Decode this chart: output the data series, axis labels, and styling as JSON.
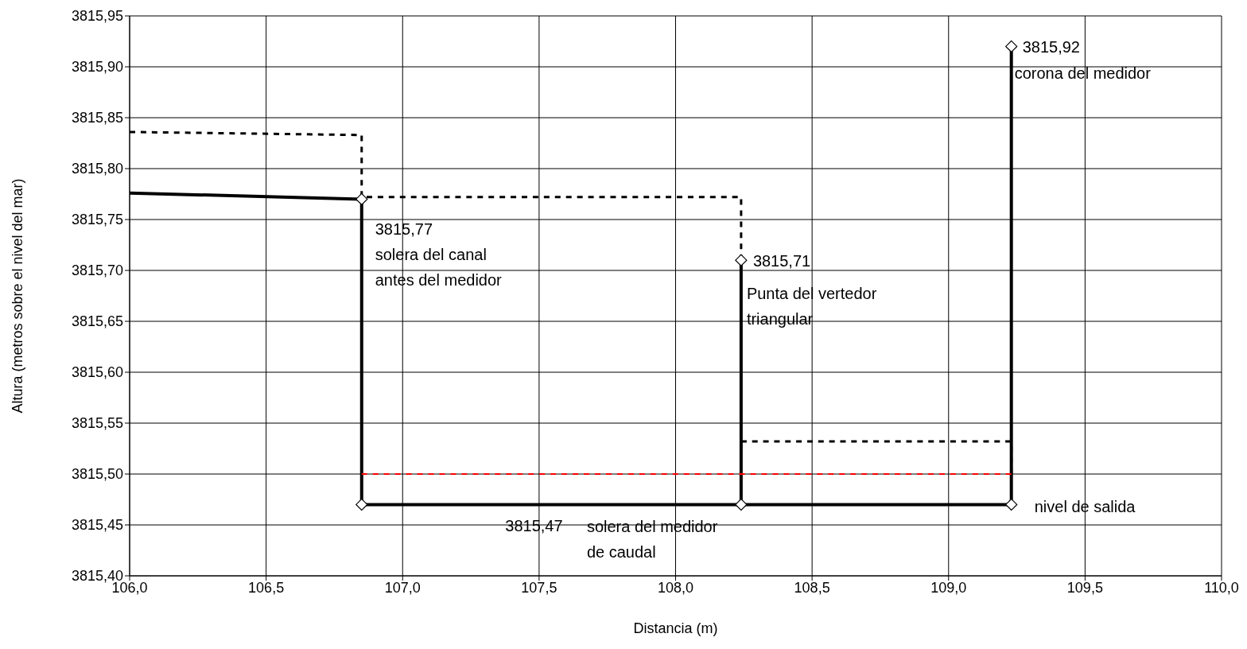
{
  "chart_data": {
    "type": "line",
    "xlabel": "Distancia (m)",
    "ylabel": "Altura (metros sobre el nivel del mar)",
    "xlim": [
      106,
      110
    ],
    "xticks": [
      {
        "value": 106,
        "label": "106,0"
      },
      {
        "value": 106.5,
        "label": "106,5"
      },
      {
        "value": 107,
        "label": "107,0"
      },
      {
        "value": 107.5,
        "label": "107,5"
      },
      {
        "value": 108,
        "label": "108,0"
      },
      {
        "value": 108.5,
        "label": "108,5"
      },
      {
        "value": 109,
        "label": "109,0"
      },
      {
        "value": 109.5,
        "label": "109,5"
      },
      {
        "value": 110,
        "label": "110,0"
      }
    ],
    "ylim": [
      3815.4,
      3815.95
    ],
    "yticks": [
      {
        "value": 3815.4,
        "label": "3815,40"
      },
      {
        "value": 3815.45,
        "label": "3815,45"
      },
      {
        "value": 3815.5,
        "label": "3815,50"
      },
      {
        "value": 3815.55,
        "label": "3815,55"
      },
      {
        "value": 3815.6,
        "label": "3815,60"
      },
      {
        "value": 3815.65,
        "label": "3815,65"
      },
      {
        "value": 3815.7,
        "label": "3815,70"
      },
      {
        "value": 3815.75,
        "label": "3815,75"
      },
      {
        "value": 3815.8,
        "label": "3815,80"
      },
      {
        "value": 3815.85,
        "label": "3815,85"
      },
      {
        "value": 3815.9,
        "label": "3815,90"
      },
      {
        "value": 3815.95,
        "label": "3815,95"
      }
    ],
    "grid": true,
    "series": [
      {
        "type": "line",
        "color": "#000000",
        "marker": "none",
        "line_style": "solid",
        "x": [
          106,
          106.85,
          106.85,
          108.24,
          108.24,
          108.24,
          109.23,
          109.23
        ],
        "values": [
          3815.776,
          3815.77,
          3815.47,
          3815.47,
          3815.71,
          3815.47,
          3815.47,
          3815.92
        ]
      },
      {
        "type": "line",
        "color": "#000000",
        "marker": "none",
        "line_style": "dashed",
        "x": [
          106,
          106.85,
          106.85,
          108.24,
          108.24
        ],
        "values": [
          3815.836,
          3815.833,
          3815.772,
          3815.772,
          3815.71
        ]
      },
      {
        "type": "line",
        "color": "#000000",
        "marker": "none",
        "line_style": "dashed",
        "x": [
          108.24,
          109.23,
          109.23
        ],
        "values": [
          3815.532,
          3815.532,
          3815.5
        ]
      },
      {
        "type": "line",
        "color": "#ff0000",
        "marker": "none",
        "line_style": "dashed",
        "x": [
          106.85,
          109.23
        ],
        "values": [
          3815.5,
          3815.5
        ]
      },
      {
        "type": "scatter",
        "color": "#000000",
        "marker": "diamond",
        "x": [
          106.85,
          106.85,
          108.24,
          108.24,
          109.23,
          109.23
        ],
        "values": [
          3815.77,
          3815.47,
          3815.71,
          3815.47,
          3815.47,
          3815.92
        ]
      }
    ],
    "annotations": [
      {
        "text": "3815,77\nsolera del canal\nantes del medidor",
        "x": 106.85,
        "y": 3815.77
      },
      {
        "text": "3815,71",
        "x": 108.24,
        "y": 3815.71
      },
      {
        "text": "Punta del vertedor\ntriangular",
        "x": 108.24,
        "y": 3815.71
      },
      {
        "text": "3815,92",
        "x": 109.23,
        "y": 3815.92
      },
      {
        "text": "corona del medidor",
        "x": 109.23,
        "y": 3815.92
      },
      "3815,47",
      {
        "text": "solera del medidor\nde caudal",
        "x": 108.24,
        "y": 3815.47
      },
      {
        "text": "nivel de salida",
        "x": 109.23,
        "y": 3815.47
      }
    ]
  }
}
